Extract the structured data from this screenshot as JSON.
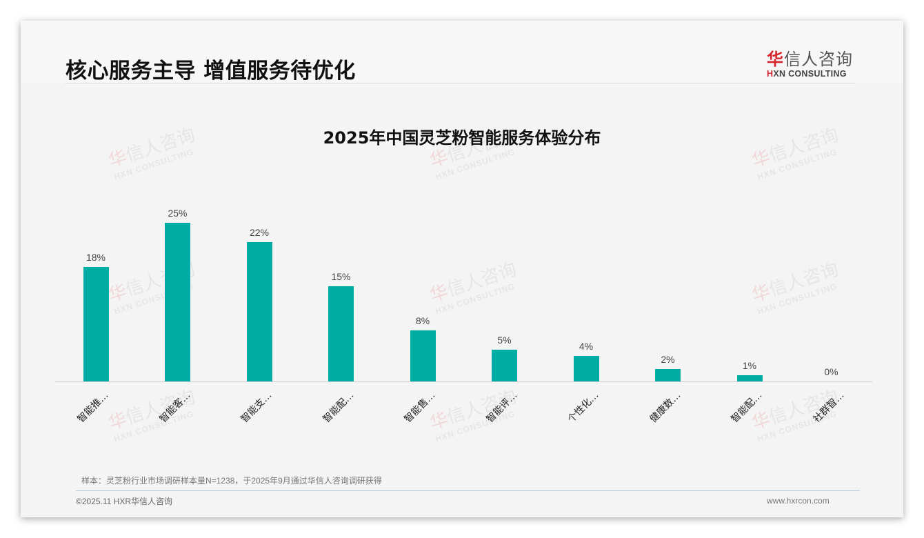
{
  "page": {
    "title": "核心服务主导 增值服务待优化",
    "logo": {
      "cn_mark": "华",
      "cn_rest": "信人咨询",
      "en_mark": "H",
      "en_rest": "XN CONSULTING"
    },
    "watermark": {
      "cn_mark": "华",
      "cn_rest": "信人咨询",
      "en": "HXN CONSULTING"
    },
    "note": "样本：灵芝粉行业市场调研样本量N=1238，于2025年9月通过华信人咨询调研获得",
    "copyright": "©2025.11 HXR华信人咨询",
    "website": "www.hxrcon.com"
  },
  "colors": {
    "bar": "#00ada5",
    "brand_red": "#d6262d",
    "text": "#111111"
  },
  "chart_data": {
    "type": "bar",
    "title": "2025年中国灵芝粉智能服务体验分布",
    "categories": [
      "智能推…",
      "智能客…",
      "智能支…",
      "智能配…",
      "智能售…",
      "智能评…",
      "个性化…",
      "健康数…",
      "智能配…",
      "社群智…"
    ],
    "values": [
      18,
      25,
      22,
      15,
      8,
      5,
      4,
      2,
      1,
      0
    ],
    "value_labels": [
      "18%",
      "25%",
      "22%",
      "15%",
      "8%",
      "5%",
      "4%",
      "2%",
      "1%",
      "0%"
    ],
    "xlabel": "",
    "ylabel": "",
    "ylim": [
      0,
      25
    ],
    "grid": false,
    "legend": "none",
    "unit": "%"
  }
}
